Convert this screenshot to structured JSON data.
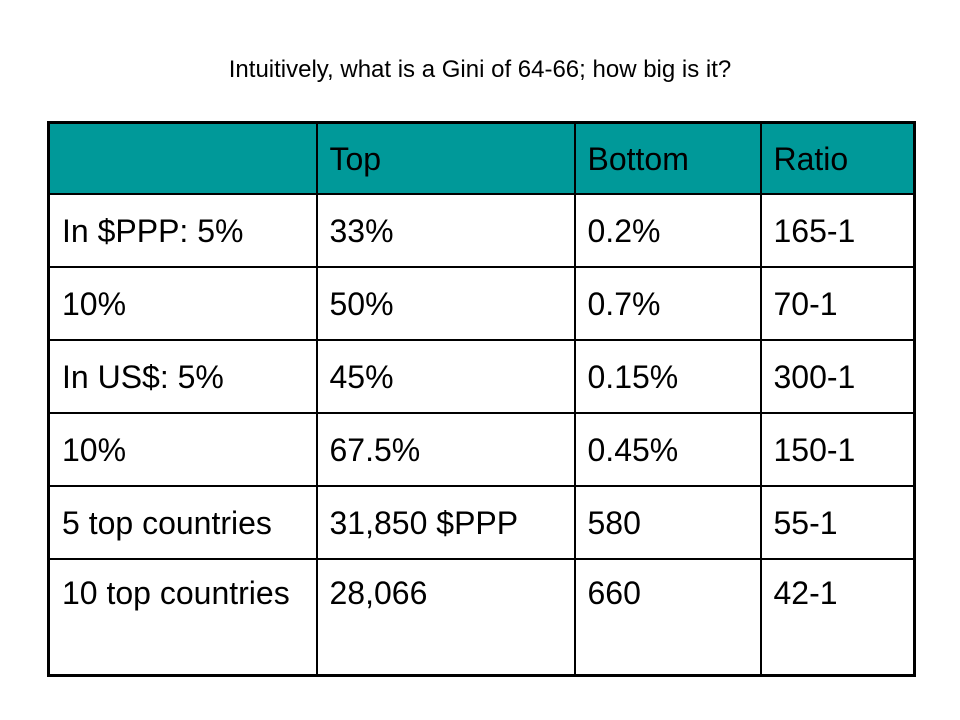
{
  "slide": {
    "title": "Intuitively, what is a Gini of 64-66; how big is it?"
  },
  "table": {
    "headers": [
      "",
      "Top",
      "Bottom",
      "Ratio"
    ],
    "rows": [
      [
        "In $PPP: 5%",
        "33%",
        "0.2%",
        "165-1"
      ],
      [
        "10%",
        "50%",
        "0.7%",
        "70-1"
      ],
      [
        "In US$: 5%",
        "45%",
        "0.15%",
        "300-1"
      ],
      [
        "10%",
        "67.5%",
        "0.45%",
        "150-1"
      ],
      [
        "5 top countries",
        "31,850 $PPP",
        "580",
        "55-1"
      ],
      [
        "10 top countries",
        "28,066",
        "660",
        "42-1"
      ]
    ]
  },
  "colors": {
    "header_background": "#009999",
    "border": "#000000",
    "text": "#000000"
  }
}
